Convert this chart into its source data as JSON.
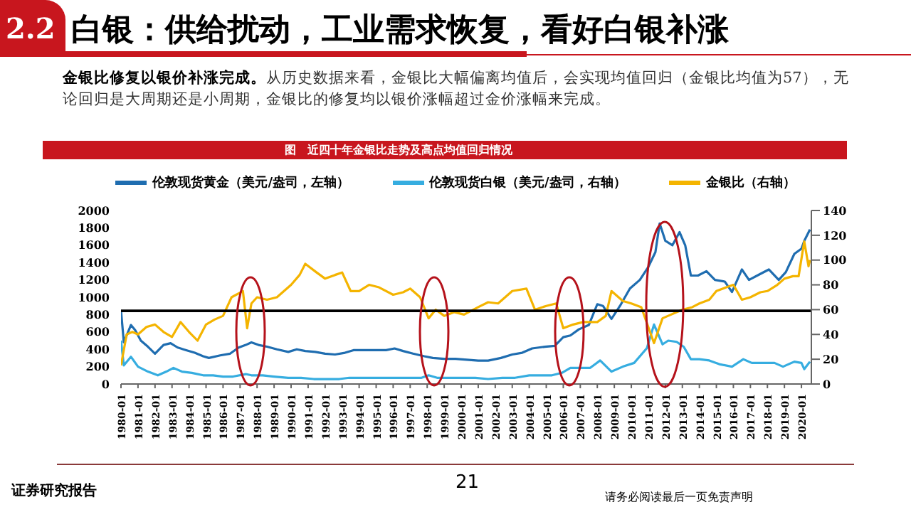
{
  "chart_data": {
    "type": "line",
    "title": "白银：供给扰动，工业需求恢复，看好白银补涨",
    "subtitle": "金银比修复以银价补涨完成。从历史数据来看，金银比大幅偏离均值后，会实现均值回归（金银比均值为57），无论回归是大周期还是小周期，金银比的修复均以银价涨幅超过金价涨幅来完成。",
    "annotations": [
      "2.2",
      "图　近四十年金银比走势及高点均值回归情况",
      "证券研究报告",
      "21",
      "请务必阅读最后一页免责声明"
    ],
    "legend": "top",
    "series": [
      {
        "name": "伦敦现货黄金（美元/盎司，左轴）",
        "color": "#1f6db0",
        "x": [
          "1980-01",
          "1980-03",
          "1980-08",
          "1980-11",
          "1981-03",
          "1981-08",
          "1982-01",
          "1982-07",
          "1982-12",
          "1983-05",
          "1983-11",
          "1984-05",
          "1984-11",
          "1985-03",
          "1985-11",
          "1986-06",
          "1986-12",
          "1987-05",
          "1987-09",
          "1988-02",
          "1988-08",
          "1989-03",
          "1989-11",
          "1990-05",
          "1990-11",
          "1991-06",
          "1992-01",
          "1992-08",
          "1993-03",
          "1993-09",
          "1994-05",
          "1995-01",
          "1995-08",
          "1996-02",
          "1996-08",
          "1997-03",
          "1997-11",
          "1998-05",
          "1999-01",
          "1999-09",
          "2000-05",
          "2001-01",
          "2001-08",
          "2002-05",
          "2003-01",
          "2003-08",
          "2004-03",
          "2004-12",
          "2005-07",
          "2006-01",
          "2006-06",
          "2006-12",
          "2007-07",
          "2008-01",
          "2008-05",
          "2008-11",
          "2009-05",
          "2009-12",
          "2010-07",
          "2011-01",
          "2011-06",
          "2011-09",
          "2012-01",
          "2012-06",
          "2012-11",
          "2013-03",
          "2013-07",
          "2013-12",
          "2014-06",
          "2014-12",
          "2015-07",
          "2015-12",
          "2016-07",
          "2016-12",
          "2017-07",
          "2018-02",
          "2018-09",
          "2019-02",
          "2019-08",
          "2020-01",
          "2020-03",
          "2020-07"
        ],
        "values": [
          850,
          480,
          680,
          620,
          500,
          430,
          350,
          450,
          470,
          420,
          390,
          360,
          320,
          300,
          330,
          350,
          420,
          450,
          480,
          450,
          430,
          400,
          370,
          400,
          380,
          370,
          350,
          340,
          360,
          390,
          390,
          390,
          390,
          410,
          380,
          350,
          320,
          300,
          290,
          290,
          280,
          270,
          270,
          300,
          340,
          360,
          410,
          430,
          440,
          540,
          560,
          630,
          680,
          920,
          900,
          750,
          900,
          1100,
          1200,
          1350,
          1520,
          1850,
          1650,
          1600,
          1750,
          1600,
          1250,
          1250,
          1300,
          1200,
          1180,
          1060,
          1320,
          1200,
          1260,
          1320,
          1200,
          1290,
          1500,
          1560,
          1650,
          1780
        ]
      },
      {
        "name": "伦敦现货白银（美元/盎司，右轴）",
        "color": "#36ade0",
        "axis": "y2",
        "x": [
          "1980-01",
          "1980-03",
          "1980-08",
          "1981-01",
          "1981-08",
          "1982-03",
          "1982-09",
          "1983-02",
          "1983-08",
          "1984-03",
          "1984-11",
          "1985-06",
          "1986-01",
          "1986-08",
          "1987-05",
          "1987-09",
          "1988-05",
          "1989-01",
          "1989-11",
          "1990-08",
          "1991-05",
          "1992-01",
          "1992-11",
          "1993-06",
          "1994-01",
          "1994-11",
          "1995-07",
          "1996-03",
          "1997-01",
          "1997-09",
          "1998-02",
          "1998-08",
          "1999-05",
          "2000-01",
          "2000-11",
          "2001-08",
          "2002-06",
          "2003-03",
          "2004-01",
          "2004-08",
          "2005-05",
          "2005-12",
          "2006-06",
          "2007-01",
          "2007-08",
          "2008-03",
          "2008-11",
          "2009-07",
          "2010-03",
          "2010-12",
          "2011-05",
          "2011-11",
          "2012-03",
          "2012-09",
          "2013-02",
          "2013-07",
          "2014-01",
          "2014-08",
          "2015-03",
          "2015-12",
          "2016-08",
          "2017-02",
          "2017-11",
          "2018-06",
          "2018-12",
          "2019-08",
          "2020-01",
          "2020-03",
          "2020-07"
        ],
        "values": [
          35,
          15,
          22,
          14,
          10,
          7,
          10,
          13,
          10,
          9,
          7,
          7,
          6,
          6,
          8,
          7,
          7,
          6,
          5,
          5,
          4,
          4,
          4,
          5,
          5,
          5,
          5,
          5,
          5,
          5,
          7,
          5,
          5,
          5,
          5,
          4,
          5,
          5,
          7,
          7,
          7,
          9,
          13,
          13,
          13,
          19,
          10,
          14,
          17,
          29,
          48,
          32,
          35,
          34,
          30,
          20,
          20,
          19,
          16,
          14,
          20,
          17,
          17,
          17,
          14,
          18,
          17,
          12,
          18
        ]
      },
      {
        "name": "金银比（右轴）",
        "color": "#f4b400",
        "axis": "y2",
        "x": [
          "1980-01",
          "1980-05",
          "1980-09",
          "1981-01",
          "1981-07",
          "1982-01",
          "1982-07",
          "1983-01",
          "1983-07",
          "1984-01",
          "1984-07",
          "1985-01",
          "1985-07",
          "1986-01",
          "1986-07",
          "1987-03",
          "1987-06",
          "1987-09",
          "1988-01",
          "1988-08",
          "1989-03",
          "1990-01",
          "1990-07",
          "1990-11",
          "1991-07",
          "1992-01",
          "1992-08",
          "1993-01",
          "1993-07",
          "1994-01",
          "1994-08",
          "1995-03",
          "1996-01",
          "1996-08",
          "1997-01",
          "1997-08",
          "1998-02",
          "1998-07",
          "1999-01",
          "1999-08",
          "2000-03",
          "2001-01",
          "2001-08",
          "2002-03",
          "2003-01",
          "2003-11",
          "2004-05",
          "2005-01",
          "2005-08",
          "2006-01",
          "2006-08",
          "2007-03",
          "2008-01",
          "2008-07",
          "2008-11",
          "2009-07",
          "2010-01",
          "2010-08",
          "2011-05",
          "2011-11",
          "2012-03",
          "2013-01",
          "2013-08",
          "2014-01",
          "2014-08",
          "2015-01",
          "2015-08",
          "2016-01",
          "2016-07",
          "2017-01",
          "2017-08",
          "2018-01",
          "2018-08",
          "2019-01",
          "2019-07",
          "2019-11",
          "2020-03",
          "2020-06",
          "2020-07"
        ],
        "values": [
          15,
          40,
          42,
          40,
          46,
          48,
          42,
          38,
          50,
          42,
          35,
          48,
          52,
          55,
          70,
          75,
          45,
          65,
          70,
          68,
          70,
          80,
          88,
          97,
          90,
          85,
          88,
          90,
          75,
          75,
          80,
          78,
          72,
          74,
          77,
          70,
          53,
          60,
          55,
          58,
          56,
          62,
          66,
          65,
          75,
          77,
          60,
          63,
          65,
          45,
          48,
          50,
          50,
          55,
          75,
          67,
          65,
          62,
          33,
          53,
          55,
          60,
          62,
          65,
          68,
          75,
          78,
          80,
          68,
          70,
          74,
          75,
          80,
          85,
          87,
          87,
          115,
          95,
          100
        ]
      }
    ],
    "xlim": [
      "1980-01",
      "2020-08"
    ],
    "xticks": [
      "1980-01",
      "1981-01",
      "1982-01",
      "1983-01",
      "1984-01",
      "1985-01",
      "1986-01",
      "1987-01",
      "1988-01",
      "1989-01",
      "1990-01",
      "1991-01",
      "1992-01",
      "1993-01",
      "1994-01",
      "1995-01",
      "1996-01",
      "1997-01",
      "1998-01",
      "1999-01",
      "2000-01",
      "2001-01",
      "2002-01",
      "2003-01",
      "2004-01",
      "2005-01",
      "2006-01",
      "2007-01",
      "2008-01",
      "2009-01",
      "2010-01",
      "2011-01",
      "2012-01",
      "2013-01",
      "2014-01",
      "2015-01",
      "2016-01",
      "2017-01",
      "2018-01",
      "2019-01",
      "2020-01"
    ],
    "ylim": [
      0,
      2000
    ],
    "yticks": [
      0,
      200,
      400,
      600,
      800,
      1000,
      1200,
      1400,
      1600,
      1800,
      2000
    ],
    "y2lim": [
      0,
      140
    ],
    "y2ticks": [
      0,
      20,
      40,
      60,
      80,
      100,
      120,
      140
    ],
    "ref_lines": [
      {
        "axis": "y2",
        "value": 59,
        "color": "#000000"
      }
    ]
  }
}
